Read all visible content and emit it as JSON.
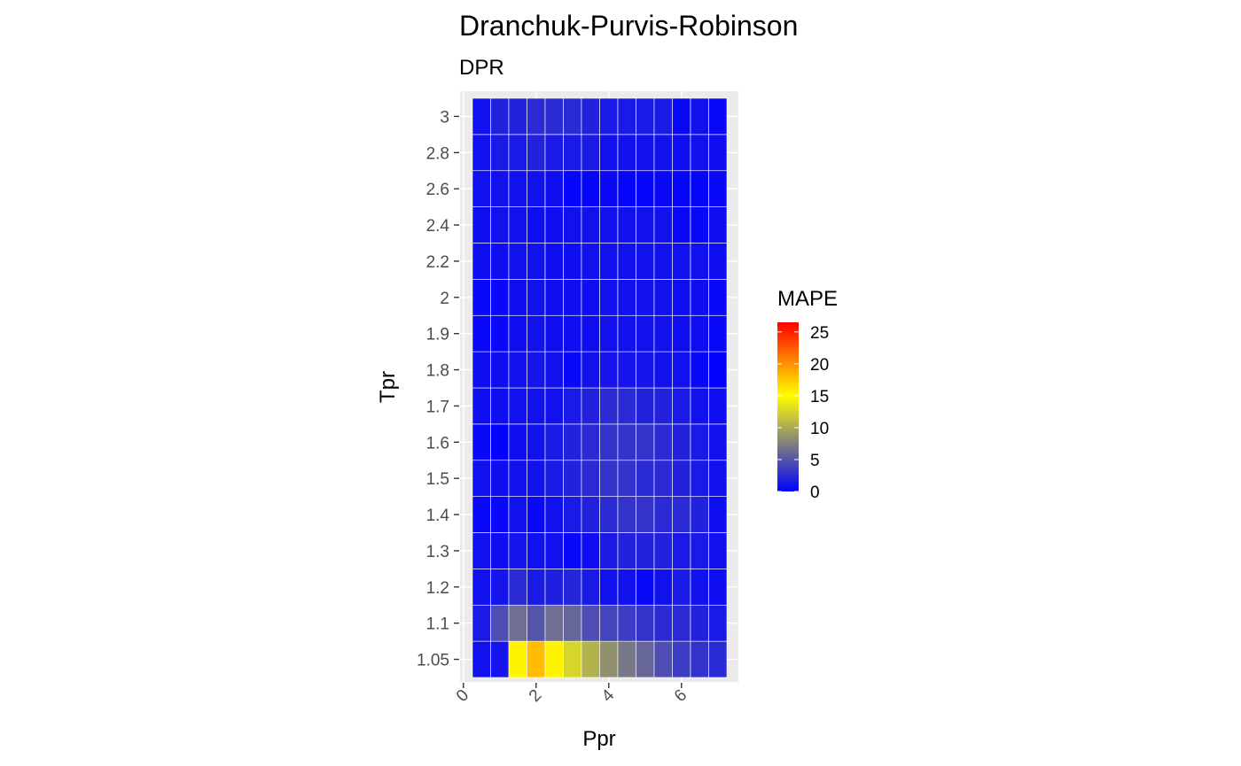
{
  "chart_data": {
    "type": "heatmap",
    "title": "Dranchuk-Purvis-Robinson",
    "subtitle": "DPR",
    "xlabel": "Ppr",
    "ylabel": "Tpr",
    "x_ticks": [
      "0",
      "2",
      "4",
      "6"
    ],
    "x_tick_values": [
      0,
      2,
      4,
      6
    ],
    "xlim": [
      0,
      7.5
    ],
    "x": [
      0.5,
      1.0,
      1.5,
      2.0,
      2.5,
      3.0,
      3.5,
      4.0,
      4.5,
      5.0,
      5.5,
      6.0,
      6.5,
      7.0
    ],
    "y": [
      "1.05",
      "1.1",
      "1.2",
      "1.3",
      "1.4",
      "1.5",
      "1.6",
      "1.7",
      "1.8",
      "1.9",
      "2",
      "2.2",
      "2.4",
      "2.6",
      "2.8",
      "3"
    ],
    "z": [
      [
        1.0,
        1.2,
        15.5,
        18.0,
        15.5,
        12.5,
        10.5,
        8.5,
        7.0,
        6.0,
        4.5,
        3.5,
        3.0,
        2.5
      ],
      [
        1.5,
        4.5,
        6.5,
        5.0,
        6.5,
        6.0,
        4.5,
        4.0,
        3.5,
        3.0,
        2.5,
        2.5,
        2.0,
        1.5
      ],
      [
        1.0,
        1.2,
        2.5,
        1.5,
        1.8,
        2.2,
        1.5,
        1.0,
        1.0,
        0.5,
        1.0,
        1.5,
        1.0,
        0.8
      ],
      [
        1.0,
        0.8,
        1.2,
        1.0,
        1.0,
        0.5,
        0.8,
        1.5,
        2.0,
        2.0,
        2.0,
        1.5,
        1.5,
        1.0
      ],
      [
        0.5,
        0.5,
        1.0,
        0.5,
        1.0,
        1.5,
        2.0,
        2.5,
        3.0,
        3.0,
        2.5,
        2.5,
        2.0,
        0.8
      ],
      [
        1.0,
        0.8,
        1.0,
        1.0,
        1.5,
        2.0,
        2.5,
        3.0,
        3.0,
        2.5,
        2.5,
        2.0,
        1.5,
        1.0
      ],
      [
        0.5,
        0.2,
        0.8,
        1.0,
        1.5,
        2.0,
        2.5,
        3.0,
        3.0,
        3.0,
        2.5,
        2.0,
        1.5,
        1.0
      ],
      [
        0.8,
        0.8,
        1.0,
        1.0,
        1.0,
        1.5,
        2.0,
        2.5,
        2.5,
        2.0,
        2.0,
        1.5,
        1.0,
        0.8
      ],
      [
        0.8,
        0.8,
        1.0,
        1.2,
        1.0,
        0.5,
        1.0,
        1.2,
        1.2,
        1.2,
        1.0,
        1.0,
        0.5,
        0.2
      ],
      [
        0.5,
        0.5,
        0.8,
        1.0,
        0.8,
        0.8,
        0.8,
        1.0,
        1.0,
        1.0,
        1.0,
        0.8,
        0.8,
        0.5
      ],
      [
        0.5,
        0.5,
        0.8,
        1.0,
        0.8,
        0.8,
        0.8,
        1.0,
        1.0,
        1.0,
        1.0,
        0.8,
        0.8,
        0.5
      ],
      [
        0.8,
        0.8,
        1.0,
        1.0,
        0.8,
        0.8,
        1.0,
        1.0,
        1.0,
        1.0,
        1.0,
        1.0,
        1.0,
        0.8
      ],
      [
        0.8,
        1.0,
        1.0,
        0.8,
        0.8,
        1.0,
        1.0,
        1.0,
        1.0,
        1.0,
        1.0,
        0.5,
        0.5,
        0.8
      ],
      [
        1.0,
        1.0,
        1.0,
        1.0,
        0.8,
        0.3,
        0.3,
        0.5,
        0.3,
        0.3,
        0.5,
        0.3,
        0.3,
        0.5
      ],
      [
        1.0,
        1.5,
        1.5,
        2.0,
        1.5,
        1.5,
        1.5,
        1.0,
        1.0,
        1.0,
        1.0,
        0.8,
        1.0,
        0.8
      ],
      [
        1.0,
        2.0,
        2.0,
        2.5,
        2.5,
        2.5,
        2.0,
        1.5,
        1.5,
        1.5,
        1.5,
        0.5,
        1.0,
        0.5
      ]
    ],
    "legend": {
      "title": "MAPE",
      "ticks": [
        0,
        5,
        10,
        15,
        20,
        25
      ],
      "range": [
        0,
        26.5
      ],
      "colors": [
        "#0000ff",
        "#ffff00",
        "#ff0000"
      ],
      "midpoint": 15
    },
    "grid": true,
    "panel_background": "#ebebeb",
    "legend_position": "right"
  }
}
